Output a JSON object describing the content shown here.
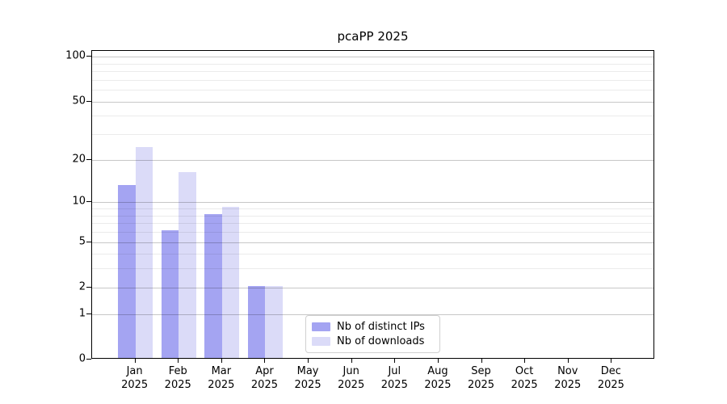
{
  "chart_data": {
    "type": "bar",
    "title": "pcaPP 2025",
    "year": "2025",
    "months": [
      "Jan",
      "Feb",
      "Mar",
      "Apr",
      "May",
      "Jun",
      "Jul",
      "Aug",
      "Sep",
      "Oct",
      "Nov",
      "Dec"
    ],
    "categories": [
      "Jan 2025",
      "Feb 2025",
      "Mar 2025",
      "Apr 2025",
      "May 2025",
      "Jun 2025",
      "Jul 2025",
      "Aug 2025",
      "Sep 2025",
      "Oct 2025",
      "Nov 2025",
      "Dec 2025"
    ],
    "series": [
      {
        "name": "Nb of distinct IPs",
        "color": "#a4a4f2",
        "values": [
          13,
          6,
          8,
          2,
          0,
          0,
          0,
          0,
          0,
          0,
          0,
          0
        ]
      },
      {
        "name": "Nb of downloads",
        "color": "#dbdbf8",
        "values": [
          24,
          16,
          9,
          2,
          0,
          0,
          0,
          0,
          0,
          0,
          0,
          0
        ]
      }
    ],
    "xlabel": "",
    "ylabel": "",
    "yticks_major": [
      0,
      1,
      2,
      5,
      10,
      20,
      50,
      100
    ],
    "yticks_minor": [
      3,
      4,
      6,
      7,
      8,
      9,
      30,
      40,
      60,
      70,
      80,
      90
    ],
    "y_scale": "log1p",
    "ylim": [
      0,
      110
    ],
    "grid": true,
    "legend_position": "bottom-center"
  },
  "legend": {
    "items": [
      {
        "label": "Nb of distinct IPs",
        "color": "#a4a4f2"
      },
      {
        "label": "Nb of downloads",
        "color": "#dbdbf8"
      }
    ]
  }
}
